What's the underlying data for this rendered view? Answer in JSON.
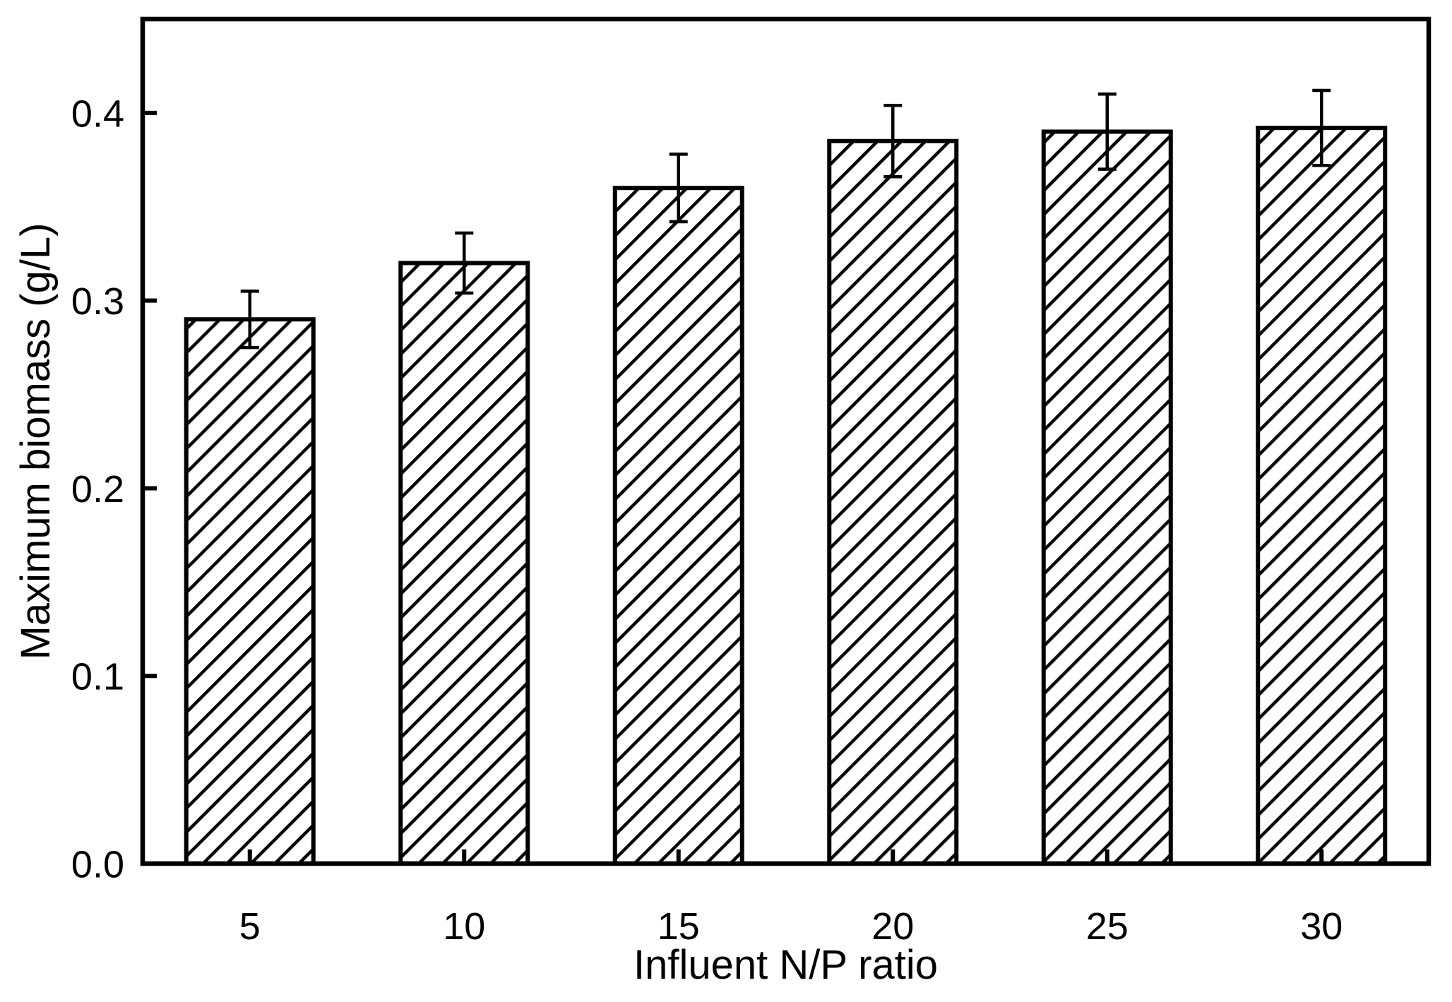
{
  "figure": {
    "background_color": "#ffffff",
    "foreground_color": "#000000"
  },
  "chart_data": {
    "type": "bar",
    "title": "",
    "xlabel": "Influent N/P ratio",
    "ylabel": "Maximum biomass (g/L)",
    "categories": [
      "5",
      "10",
      "15",
      "20",
      "25",
      "30"
    ],
    "values": [
      0.29,
      0.32,
      0.36,
      0.385,
      0.39,
      0.392
    ],
    "errors": [
      0.015,
      0.016,
      0.018,
      0.019,
      0.02,
      0.02
    ],
    "ylim": [
      0,
      0.45
    ],
    "yticks": [
      0,
      0.1,
      0.2,
      0.3,
      0.4
    ],
    "ytick_labels": [
      "0.0",
      "0.1",
      "0.2",
      "0.3",
      "0.4"
    ],
    "grid": false,
    "legend": "none",
    "bar_fill": "#ffffff",
    "bar_hatch": "diagonal-forward-slash",
    "line_color": "#000000",
    "error_bar_style": "vertical-with-caps"
  }
}
